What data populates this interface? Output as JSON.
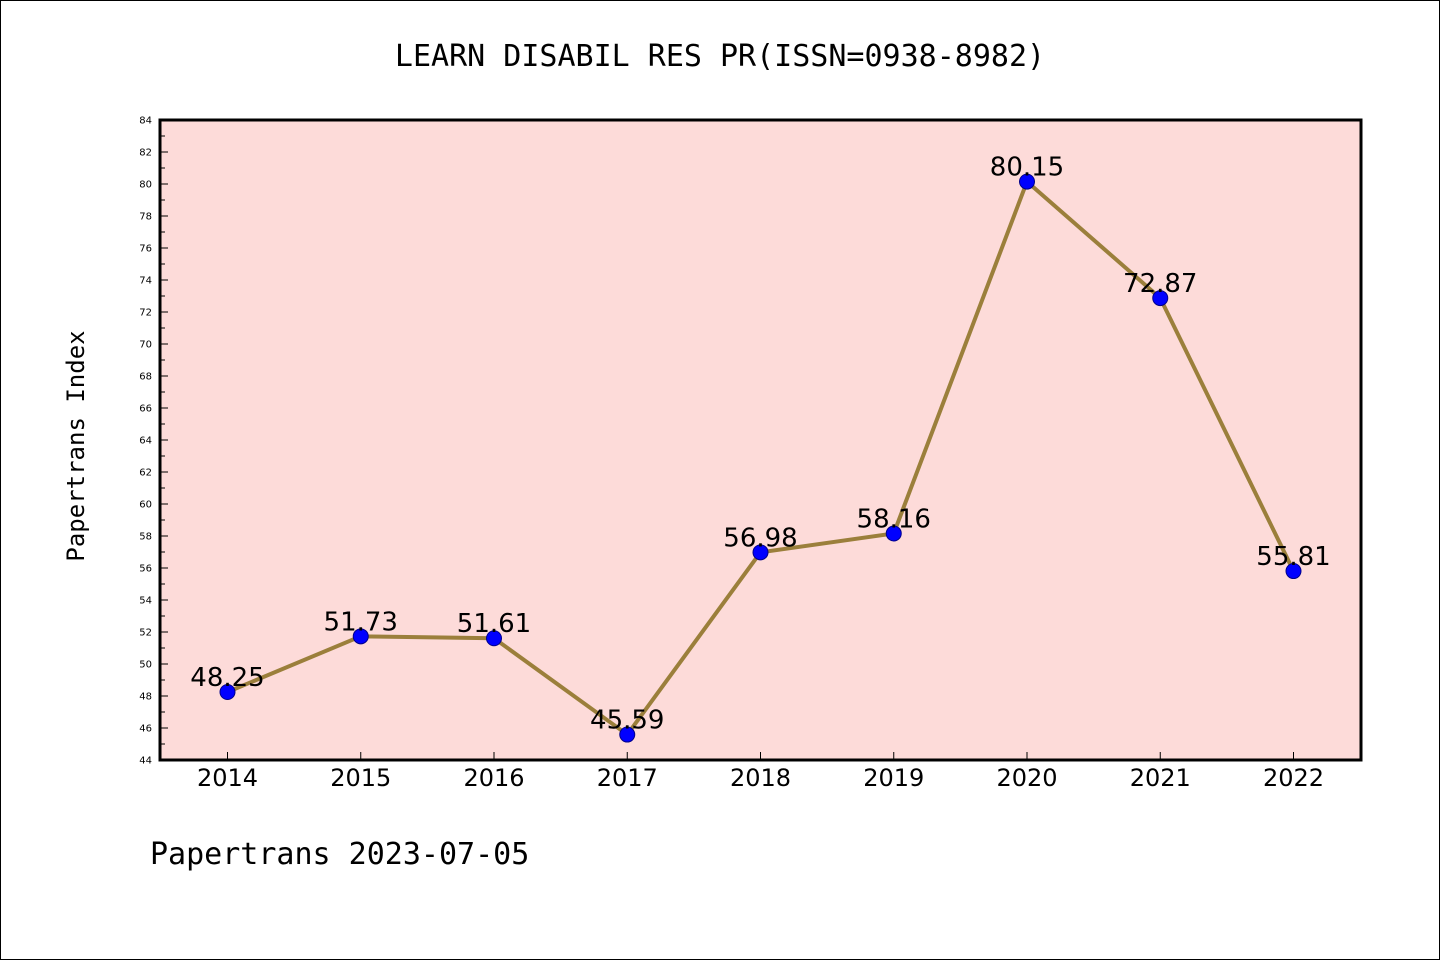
{
  "chart_data": {
    "type": "line",
    "title": "LEARN DISABIL RES PR(ISSN=0938-8982)",
    "xlabel": "",
    "ylabel": "Papertrans Index",
    "categories": [
      "2014",
      "2015",
      "2016",
      "2017",
      "2018",
      "2019",
      "2020",
      "2021",
      "2022"
    ],
    "series": [
      {
        "values": [
          48.25,
          51.73,
          51.61,
          45.59,
          56.98,
          58.16,
          80.15,
          72.87,
          55.81
        ],
        "labels": [
          "48.25",
          "51.73",
          "51.61",
          "45.59",
          "56.98",
          "58.16",
          "80.15",
          "72.87",
          "55.81"
        ]
      }
    ],
    "ylim": [
      44,
      84
    ],
    "yticks": [
      44,
      46,
      48,
      50,
      52,
      54,
      56,
      58,
      60,
      62,
      64,
      66,
      68,
      70,
      72,
      74,
      76,
      78,
      80,
      82,
      84
    ],
    "grid": false,
    "colors": {
      "plot_background": "#fddbd9",
      "line": "#9b7f3b",
      "marker": "#0000ff",
      "marker_edge": "#00008b",
      "axes": "#000000"
    }
  },
  "footer": "Papertrans 2023-07-05"
}
